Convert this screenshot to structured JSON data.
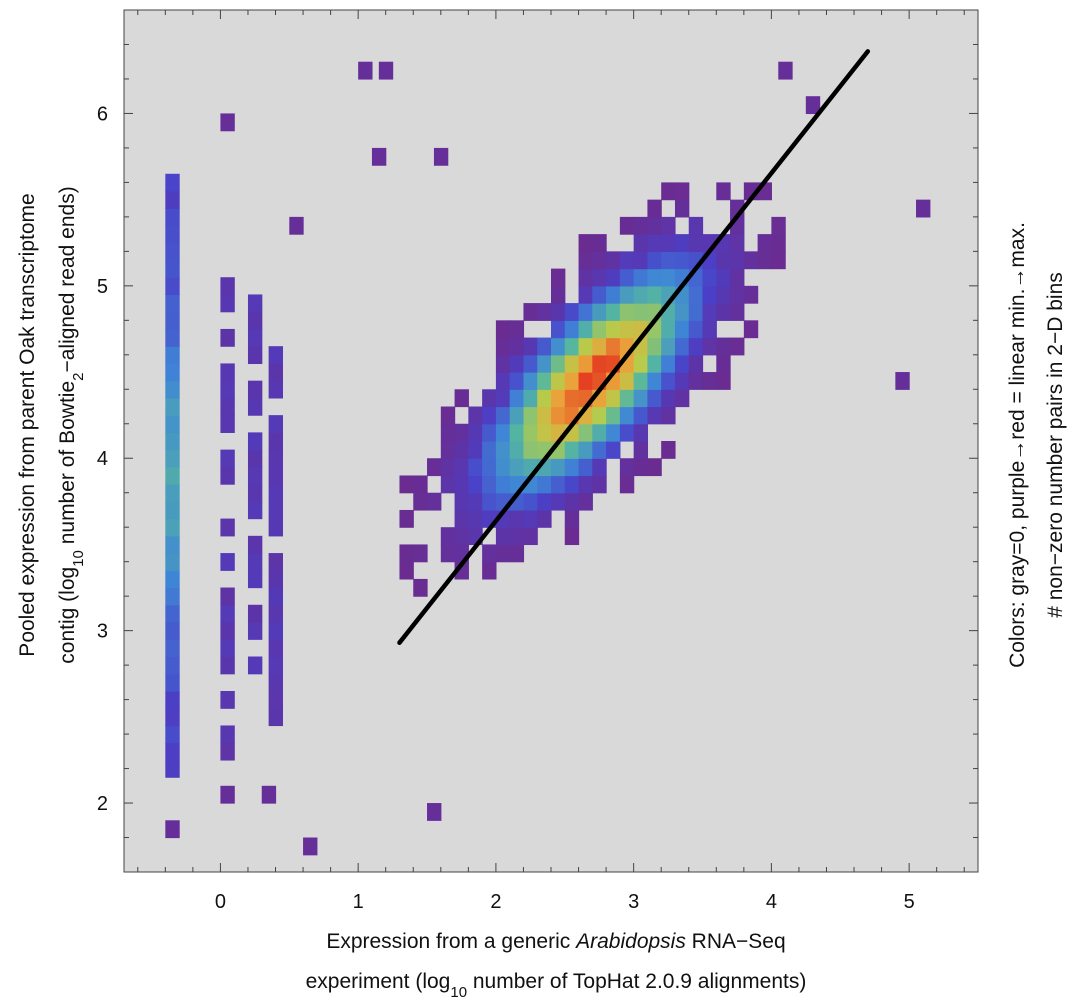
{
  "chart_data": {
    "type": "heatmap",
    "title": "",
    "xlabel": {
      "line1_before": "Expression from a generic ",
      "line1_italic": "Arabidopsis",
      "line1_after": " RNA−Seq",
      "line2_before": "experiment  (log",
      "line2_sub": "10",
      "line2_after": " number of TopHat 2.0.9 alignments)"
    },
    "ylabel": {
      "line1": "Pooled expression from parent Oak transcriptome",
      "line2_before": "contig  (log",
      "line2_sub": "10",
      "line2_mid": " number of Bowtie",
      "line2_sub2": "2",
      "line2_after": "−aligned read ends)"
    },
    "colorbar_label": {
      "line1": "Colors:  gray=0, purple→red = linear min.→max.",
      "line2": "# non−zero number pairs in 2−D bins"
    },
    "xlim": [
      -0.7,
      5.5
    ],
    "ylim": [
      1.6,
      6.6
    ],
    "x_ticks": [
      0,
      1,
      2,
      3,
      4,
      5
    ],
    "y_ticks": [
      2,
      3,
      4,
      5,
      6
    ],
    "x_tick_labels": [
      "0",
      "1",
      "2",
      "3",
      "4",
      "5"
    ],
    "y_tick_labels": [
      "2",
      "3",
      "4",
      "5",
      "6"
    ],
    "grid": false,
    "background_color": "#d9d9d9",
    "colormap": [
      "#6a2c91",
      "#4a40c8",
      "#3f86d6",
      "#55b6a0",
      "#b7cc4c",
      "#eaa23a",
      "#e2231a"
    ],
    "bin_width": 0.1,
    "bin_height": 0.1,
    "bin_density": {
      "center": [
        2.7,
        4.45
      ],
      "covariance": [
        [
          0.26,
          0.17
        ],
        [
          0.17,
          0.2
        ]
      ],
      "max_count": 100,
      "nonzero_threshold": 0.018
    },
    "zero_expression_columns": [
      {
        "x": -0.35,
        "y_range": [
          2.2,
          5.6
        ]
      },
      {
        "x": 0.05,
        "y_range": [
          2.3,
          5.0
        ]
      },
      {
        "x": 0.25,
        "y_range": [
          2.8,
          4.9
        ]
      },
      {
        "x": 0.4,
        "y_range": [
          2.4,
          4.6
        ]
      }
    ],
    "outlier_bins": [
      [
        -0.35,
        1.85
      ],
      [
        0.05,
        5.95
      ],
      [
        1.05,
        6.25
      ],
      [
        1.2,
        6.25
      ],
      [
        0.65,
        1.75
      ],
      [
        1.15,
        5.75
      ],
      [
        1.55,
        1.95
      ],
      [
        4.95,
        4.45
      ],
      [
        5.1,
        5.45
      ],
      [
        4.1,
        6.25
      ],
      [
        0.05,
        2.05
      ],
      [
        0.35,
        2.05
      ],
      [
        1.6,
        5.75
      ],
      [
        0.55,
        5.35
      ],
      [
        4.3,
        6.05
      ]
    ],
    "fit_line": {
      "x": [
        1.3,
        4.7
      ],
      "y": [
        2.93,
        6.36
      ]
    }
  }
}
